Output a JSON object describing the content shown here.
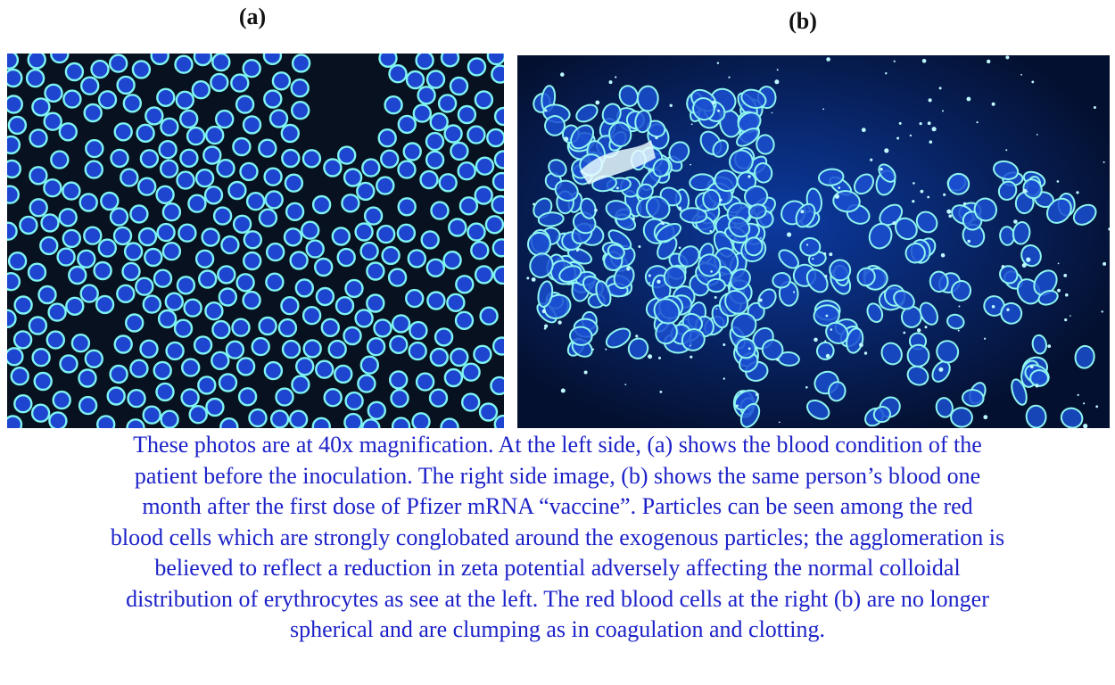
{
  "figure": {
    "panels": [
      {
        "label": "(a)"
      },
      {
        "label": "(b)"
      }
    ],
    "caption": {
      "lines": [
        "These photos are at 40x magnification. At the left side, (a) shows the blood condition of the",
        "patient before the inoculation. The right side image, (b) shows the same person’s blood one",
        "month after the first dose of Pfizer mRNA “vaccine”. Particles can be seen among the red",
        "blood cells which are strongly conglobated around the exogenous particles; the agglomeration is",
        "believed to reflect a reduction in zeta potential adversely affecting the normal colloidal",
        "distribution of erythrocytes as see at the left. The red blood cells at the right (b) are no longer",
        "spherical and are clumping as in coagulation and clotting."
      ]
    }
  }
}
